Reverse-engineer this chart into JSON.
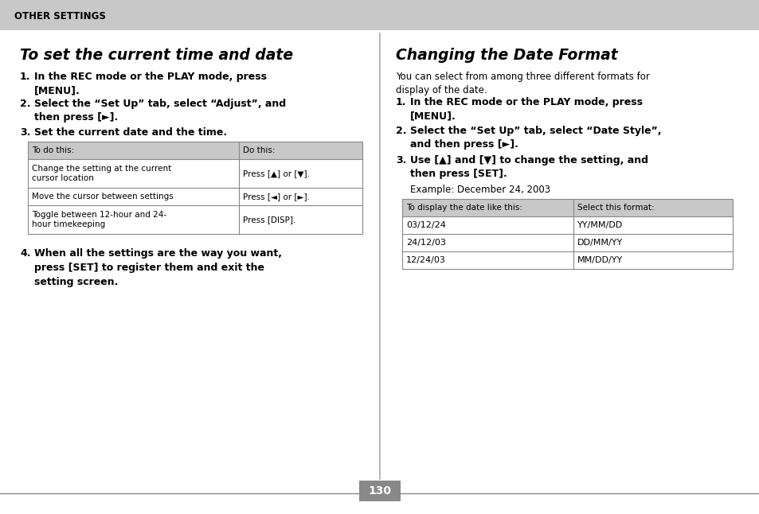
{
  "bg_color": "#ffffff",
  "header_bg": "#c8c8c8",
  "header_text": "OTHER SETTINGS",
  "header_text_color": "#000000",
  "left_title": "To set the current time and date",
  "right_title": "Changing the Date Format",
  "right_intro": "You can select from among three different formats for\ndisplay of the date.",
  "left_table_headers": [
    "To do this:",
    "Do this:"
  ],
  "left_table_rows": [
    [
      "Change the setting at the current\ncursor location",
      "Press [▲] or [▼]."
    ],
    [
      "Move the cursor between settings",
      "Press [◄] or [►]."
    ],
    [
      "Toggle between 12-hour and 24-\nhour timekeeping",
      "Press [DISP]."
    ]
  ],
  "right_example": "Example: December 24, 2003",
  "right_table_headers": [
    "To display the date like this:",
    "Select this format:"
  ],
  "right_table_rows": [
    [
      "03/12/24",
      "YY/MM/DD"
    ],
    [
      "24/12/03",
      "DD/MM/YY"
    ],
    [
      "12/24/03",
      "MM/DD/YY"
    ]
  ],
  "page_number": "130",
  "page_num_bg": "#888888",
  "page_num_color": "#ffffff",
  "divider_color": "#888888",
  "table_header_bg": "#c8c8c8",
  "table_border_color": "#888888"
}
